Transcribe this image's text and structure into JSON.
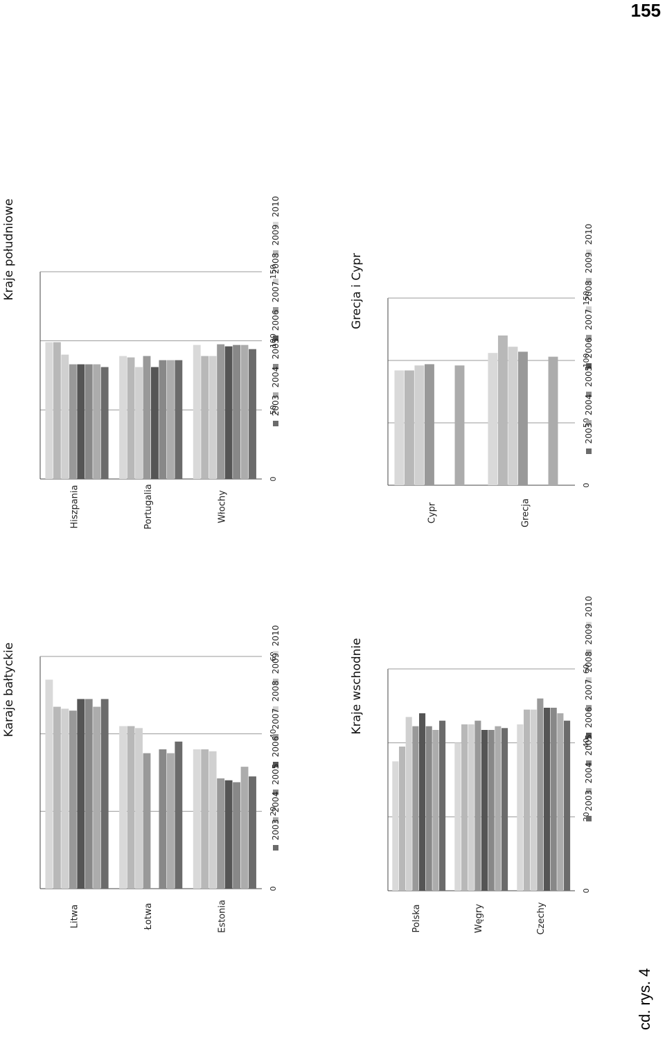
{
  "page_number": "155",
  "caption": "cd. rys. 4",
  "chart_data": [
    {
      "type": "bar",
      "title": "Karaje bałtyckie",
      "xlabel": "",
      "ylabel": "",
      "ylim": [
        0,
        60
      ],
      "ticks": [
        0,
        20,
        40,
        60
      ],
      "grid": true,
      "legend_position": "right",
      "categories": [
        "Litwa",
        "Łotwa",
        "Estonia"
      ],
      "series": [
        {
          "name": "2010",
          "color": "#d9d9d9",
          "values": [
            54,
            42,
            36
          ]
        },
        {
          "name": "2009",
          "color": "#b8b8b8",
          "values": [
            47,
            42,
            36
          ]
        },
        {
          "name": "2008",
          "color": "#d0d0d0",
          "values": [
            46.5,
            41.5,
            35.5
          ]
        },
        {
          "name": "2007",
          "color": "#999999",
          "values": [
            46,
            35,
            28.5
          ]
        },
        {
          "name": "2006",
          "color": "#555555",
          "values": [
            49,
            null,
            28
          ]
        },
        {
          "name": "2005",
          "color": "#888888",
          "values": [
            49,
            36,
            27.5
          ]
        },
        {
          "name": "2004",
          "color": "#acacac",
          "values": [
            47,
            35,
            31.5
          ]
        },
        {
          "name": "2003",
          "color": "#6b6b6b",
          "values": [
            49,
            38,
            29
          ]
        }
      ]
    },
    {
      "type": "bar",
      "title": "Kraje południowe",
      "xlabel": "",
      "ylabel": "",
      "ylim": [
        0,
        150
      ],
      "ticks": [
        0,
        50,
        100,
        150
      ],
      "grid": true,
      "legend_position": "right",
      "categories": [
        "Hiszpania",
        "Portugalia",
        "Włochy"
      ],
      "series": [
        {
          "name": "2010",
          "color": "#d9d9d9",
          "values": [
            99,
            89,
            97
          ]
        },
        {
          "name": "2009",
          "color": "#b8b8b8",
          "values": [
            99,
            88,
            89
          ]
        },
        {
          "name": "2008",
          "color": "#d0d0d0",
          "values": [
            90,
            81,
            89
          ]
        },
        {
          "name": "2007",
          "color": "#999999",
          "values": [
            83,
            89,
            97.5
          ]
        },
        {
          "name": "2006",
          "color": "#555555",
          "values": [
            83,
            81,
            96
          ]
        },
        {
          "name": "2005",
          "color": "#888888",
          "values": [
            83,
            86,
            97
          ]
        },
        {
          "name": "2004",
          "color": "#acacac",
          "values": [
            83,
            86,
            97
          ]
        },
        {
          "name": "2003",
          "color": "#6b6b6b",
          "values": [
            81,
            86,
            94
          ]
        }
      ]
    },
    {
      "type": "bar",
      "title": "Kraje wschodnie",
      "xlabel": "",
      "ylabel": "",
      "ylim": [
        0,
        60
      ],
      "ticks": [
        0,
        20,
        40,
        60
      ],
      "grid": true,
      "legend_position": "right",
      "categories": [
        "Polska",
        "Węgry",
        "Czechy"
      ],
      "series": [
        {
          "name": "2010",
          "color": "#d9d9d9",
          "values": [
            35,
            40,
            45
          ]
        },
        {
          "name": "2009",
          "color": "#b8b8b8",
          "values": [
            39,
            45,
            49
          ]
        },
        {
          "name": "2008",
          "color": "#d0d0d0",
          "values": [
            47,
            45,
            49
          ]
        },
        {
          "name": "2007",
          "color": "#999999",
          "values": [
            44.5,
            46,
            52
          ]
        },
        {
          "name": "2006",
          "color": "#555555",
          "values": [
            48,
            43.5,
            49.5
          ]
        },
        {
          "name": "2005",
          "color": "#888888",
          "values": [
            44.5,
            43.5,
            49.5
          ]
        },
        {
          "name": "2004",
          "color": "#acacac",
          "values": [
            43.5,
            44.5,
            48
          ]
        },
        {
          "name": "2003",
          "color": "#6b6b6b",
          "values": [
            46,
            44,
            46
          ]
        }
      ]
    },
    {
      "type": "bar",
      "title": "Grecja i Cypr",
      "xlabel": "",
      "ylabel": "",
      "ylim": [
        0,
        150
      ],
      "ticks": [
        0,
        50,
        100,
        150
      ],
      "grid": true,
      "legend_position": "right",
      "categories": [
        "Cypr",
        "Grecja"
      ],
      "series": [
        {
          "name": "2010",
          "color": "#d9d9d9",
          "values": [
            92,
            106
          ]
        },
        {
          "name": "2009",
          "color": "#b8b8b8",
          "values": [
            92,
            120
          ]
        },
        {
          "name": "2008",
          "color": "#d0d0d0",
          "values": [
            96,
            111
          ]
        },
        {
          "name": "2007",
          "color": "#999999",
          "values": [
            97,
            107
          ]
        },
        {
          "name": "2006",
          "color": "#555555",
          "values": [
            null,
            null
          ]
        },
        {
          "name": "2005",
          "color": "#888888",
          "values": [
            null,
            null
          ]
        },
        {
          "name": "2004",
          "color": "#acacac",
          "values": [
            96,
            103
          ]
        },
        {
          "name": "2003",
          "color": "#6b6b6b",
          "values": [
            null,
            null
          ]
        }
      ]
    }
  ]
}
